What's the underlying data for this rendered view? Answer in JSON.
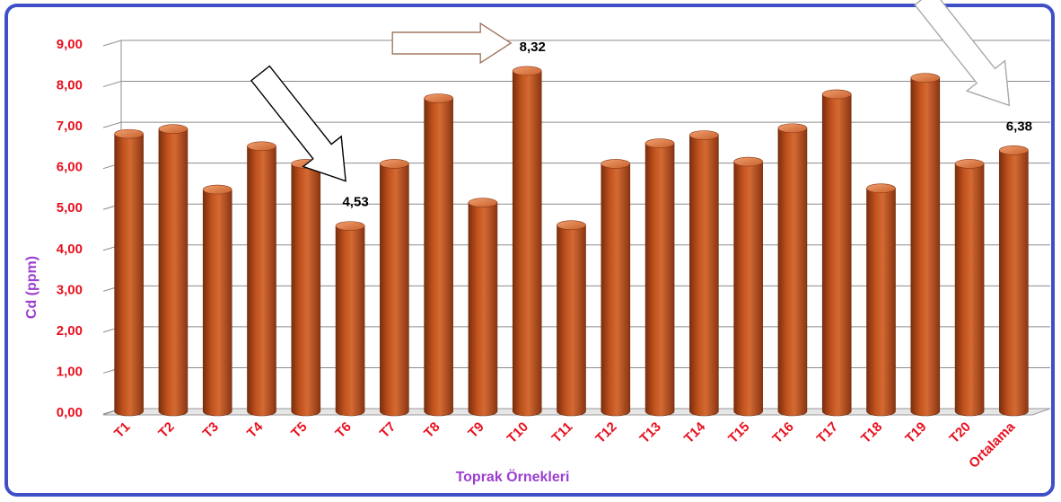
{
  "chart_data": {
    "type": "bar",
    "categories": [
      "T1",
      "T2",
      "T3",
      "T4",
      "T5",
      "T6",
      "T7",
      "T8",
      "T9",
      "T10",
      "T11",
      "T12",
      "T13",
      "T14",
      "T15",
      "T16",
      "T17",
      "T18",
      "T19",
      "T20",
      "Ortalama"
    ],
    "values": [
      6.78,
      6.9,
      5.42,
      6.48,
      6.05,
      4.53,
      6.05,
      7.65,
      5.1,
      8.32,
      4.55,
      6.05,
      6.55,
      6.75,
      6.1,
      6.92,
      7.75,
      5.45,
      8.15,
      6.05,
      6.38
    ],
    "ylabel": "Cd (ppm)",
    "xlabel": "Toprak Örnekleri",
    "ylim": [
      0,
      9
    ],
    "yticks": [
      "0,00",
      "1,00",
      "2,00",
      "3,00",
      "4,00",
      "5,00",
      "6,00",
      "7,00",
      "8,00",
      "9,00"
    ],
    "grid": true,
    "legend": "none",
    "bar_style": "3d-cylinder",
    "colors": {
      "bar": "#c1521d",
      "bar_dark": "#7a2e0e",
      "bar_light": "#e58a55",
      "tick_text": "#e8101e",
      "axis_title": "#9b3ed0",
      "frame": "#3f4fc7",
      "gridline": "#8c8c8c"
    },
    "annotations": [
      {
        "text": "4,53",
        "category": "T6",
        "arrow": "down-right",
        "arrow_color": "#000000"
      },
      {
        "text": "8,32",
        "category": "T10",
        "arrow": "right",
        "arrow_color": "#a07860"
      },
      {
        "text": "6,38",
        "category": "Ortalama",
        "arrow": "down-right",
        "arrow_color": "#a8a8a8"
      }
    ]
  }
}
